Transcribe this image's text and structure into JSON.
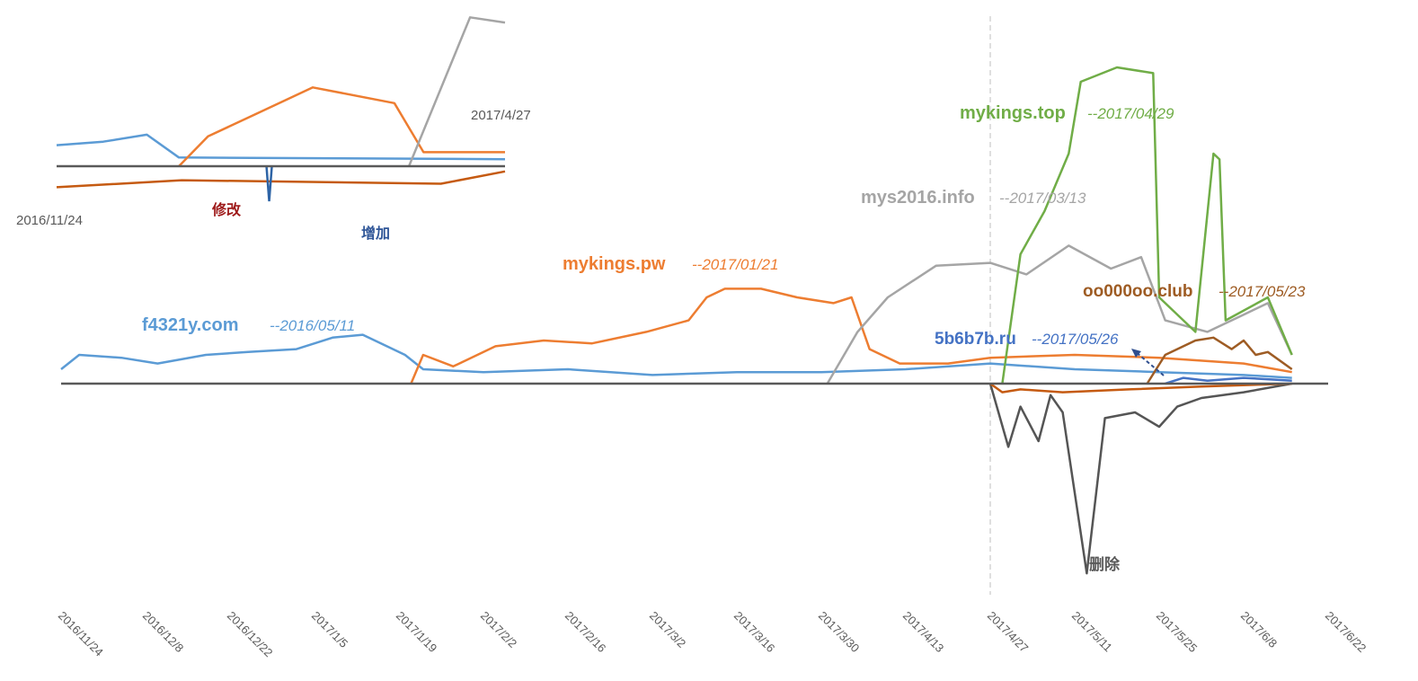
{
  "chart_data": [
    {
      "type": "line",
      "title": "",
      "xlabel": "",
      "ylabel": "",
      "x_ticks": [
        "2016/11/24",
        "2016/12/8",
        "2016/12/22",
        "2017/1/5",
        "2017/1/19",
        "2017/2/2",
        "2017/2/16",
        "2017/3/2",
        "2017/3/16",
        "2017/3/30",
        "2017/4/13",
        "2017/4/27",
        "2017/5/11",
        "2017/5/25",
        "2017/6/8",
        "2017/6/22"
      ],
      "x_range": [
        "2016/11/24",
        "2017/6/22"
      ],
      "y_range": [
        -75,
        115
      ],
      "grid": false,
      "legend": "none",
      "reference_line": {
        "date": "2017/4/27",
        "style": "dashed"
      },
      "series": [
        {
          "color": "#5b9bd5",
          "label_bind": "labels.0",
          "points": [
            [
              "2016/11/24",
              5
            ],
            [
              "2016/11/27",
              10
            ],
            [
              "2016/12/4",
              9
            ],
            [
              "2016/12/10",
              7
            ],
            [
              "2016/12/18",
              10
            ],
            [
              "2016/12/25",
              11
            ],
            [
              "2017/1/2",
              12
            ],
            [
              "2017/1/8",
              16
            ],
            [
              "2017/1/13",
              17
            ],
            [
              "2017/1/20",
              10
            ],
            [
              "2017/1/23",
              5
            ],
            [
              "2017/2/2",
              4
            ],
            [
              "2017/2/16",
              5
            ],
            [
              "2017/3/2",
              3
            ],
            [
              "2017/3/16",
              4
            ],
            [
              "2017/3/30",
              4
            ],
            [
              "2017/4/13",
              5
            ],
            [
              "2017/4/27",
              7
            ],
            [
              "2017/5/11",
              5
            ],
            [
              "2017/5/25",
              4
            ],
            [
              "2017/6/8",
              3
            ],
            [
              "2017/6/16",
              2
            ]
          ]
        },
        {
          "color": "#ed7d31",
          "label_bind": "labels.1",
          "points": [
            [
              "2017/1/21",
              0
            ],
            [
              "2017/1/23",
              10
            ],
            [
              "2017/1/28",
              6
            ],
            [
              "2017/2/4",
              13
            ],
            [
              "2017/2/12",
              15
            ],
            [
              "2017/2/20",
              14
            ],
            [
              "2017/3/1",
              18
            ],
            [
              "2017/3/8",
              22
            ],
            [
              "2017/3/11",
              30
            ],
            [
              "2017/3/14",
              33
            ],
            [
              "2017/3/20",
              33
            ],
            [
              "2017/3/26",
              30
            ],
            [
              "2017/4/1",
              28
            ],
            [
              "2017/4/4",
              30
            ],
            [
              "2017/4/7",
              12
            ],
            [
              "2017/4/12",
              7
            ],
            [
              "2017/4/20",
              7
            ],
            [
              "2017/4/27",
              9
            ],
            [
              "2017/5/11",
              10
            ],
            [
              "2017/5/25",
              9
            ],
            [
              "2017/6/8",
              7
            ],
            [
              "2017/6/16",
              4
            ]
          ]
        },
        {
          "color": "#a5a5a5",
          "label_bind": "labels.2",
          "points": [
            [
              "2017/3/31",
              0
            ],
            [
              "2017/4/5",
              18
            ],
            [
              "2017/4/10",
              30
            ],
            [
              "2017/4/18",
              41
            ],
            [
              "2017/4/27",
              42
            ],
            [
              "2017/5/3",
              38
            ],
            [
              "2017/5/10",
              48
            ],
            [
              "2017/5/17",
              40
            ],
            [
              "2017/5/22",
              44
            ],
            [
              "2017/5/26",
              22
            ],
            [
              "2017/6/2",
              18
            ],
            [
              "2017/6/8",
              24
            ],
            [
              "2017/6/12",
              28
            ],
            [
              "2017/6/16",
              10
            ]
          ]
        },
        {
          "color": "#70ad47",
          "label_bind": "labels.3",
          "points": [
            [
              "2017/4/29",
              0
            ],
            [
              "2017/5/2",
              45
            ],
            [
              "2017/5/6",
              60
            ],
            [
              "2017/5/10",
              80
            ],
            [
              "2017/5/12",
              105
            ],
            [
              "2017/5/18",
              110
            ],
            [
              "2017/5/24",
              108
            ],
            [
              "2017/5/25",
              30
            ],
            [
              "2017/5/31",
              18
            ],
            [
              "2017/6/3",
              80
            ],
            [
              "2017/6/4",
              78
            ],
            [
              "2017/6/5",
              22
            ],
            [
              "2017/6/12",
              30
            ],
            [
              "2017/6/16",
              10
            ]
          ]
        },
        {
          "color": "#9e5c24",
          "label_bind": "labels.4",
          "points": [
            [
              "2017/5/23",
              0
            ],
            [
              "2017/5/26",
              10
            ],
            [
              "2017/5/31",
              15
            ],
            [
              "2017/6/3",
              16
            ],
            [
              "2017/6/6",
              12
            ],
            [
              "2017/6/8",
              15
            ],
            [
              "2017/6/10",
              10
            ],
            [
              "2017/6/12",
              11
            ],
            [
              "2017/6/16",
              5
            ]
          ]
        },
        {
          "color": "#4472c4",
          "label_bind": "labels.5",
          "points": [
            [
              "2017/5/26",
              0
            ],
            [
              "2017/5/29",
              2
            ],
            [
              "2017/6/2",
              1
            ],
            [
              "2017/6/8",
              2
            ],
            [
              "2017/6/16",
              1
            ]
          ]
        },
        {
          "color": "#555555",
          "points": [
            [
              "2017/4/27",
              0
            ],
            [
              "2017/4/30",
              -22
            ],
            [
              "2017/5/2",
              -8
            ],
            [
              "2017/5/5",
              -20
            ],
            [
              "2017/5/7",
              -4
            ],
            [
              "2017/5/9",
              -10
            ],
            [
              "2017/5/13",
              -66
            ],
            [
              "2017/5/16",
              -12
            ],
            [
              "2017/5/21",
              -10
            ],
            [
              "2017/5/25",
              -15
            ],
            [
              "2017/5/28",
              -8
            ],
            [
              "2017/6/1",
              -5
            ],
            [
              "2017/6/8",
              -3
            ],
            [
              "2017/6/16",
              0
            ]
          ]
        },
        {
          "color": "#c55a11",
          "points": [
            [
              "2017/4/27",
              0
            ],
            [
              "2017/4/29",
              -3
            ],
            [
              "2017/5/2",
              -2
            ],
            [
              "2017/5/9",
              -3
            ],
            [
              "2017/5/20",
              -2
            ],
            [
              "2017/6/1",
              -1
            ],
            [
              "2017/6/16",
              0
            ]
          ]
        }
      ]
    },
    {
      "type": "line",
      "title": "",
      "x_range": [
        "2016/11/24",
        "2017/4/27"
      ],
      "x_ticks": [
        "2016/11/24",
        "2017/4/27"
      ],
      "grid": false,
      "legend": "none",
      "series": [
        {
          "color": "#5b9bd5",
          "points": [
            [
              "2016/11/24",
              12
            ],
            [
              "2016/12/10",
              14
            ],
            [
              "2016/12/25",
              18
            ],
            [
              "2017/1/5",
              5
            ],
            [
              "2017/4/27",
              4
            ]
          ]
        },
        {
          "color": "#ed7d31",
          "points": [
            [
              "2017/1/5",
              0
            ],
            [
              "2017/1/15",
              17
            ],
            [
              "2017/2/20",
              45
            ],
            [
              "2017/3/20",
              36
            ],
            [
              "2017/3/30",
              8
            ],
            [
              "2017/4/27",
              8
            ]
          ]
        },
        {
          "color": "#a5a5a5",
          "points": [
            [
              "2017/3/25",
              0
            ],
            [
              "2017/4/15",
              85
            ],
            [
              "2017/4/27",
              82
            ]
          ]
        },
        {
          "color": "#c55a11",
          "points": [
            [
              "2016/11/24",
              -12
            ],
            [
              "2017/1/6",
              -8
            ],
            [
              "2017/4/5",
              -10
            ],
            [
              "2017/4/27",
              -3
            ]
          ]
        },
        {
          "color": "#2e64a6",
          "points": [
            [
              "2017/2/5",
              -20
            ]
          ]
        }
      ]
    }
  ],
  "labels": [
    {
      "name": "f4321y.com",
      "date": "--2016/05/11",
      "name_color": "#5b9bd5",
      "date_color": "#5b9bd5"
    },
    {
      "name": "mykings.pw",
      "date": "--2017/01/21",
      "name_color": "#ed7d31",
      "date_color": "#ed7d31"
    },
    {
      "name": "mys2016.info",
      "date": "--2017/03/13",
      "name_color": "#a5a5a5",
      "date_color": "#a5a5a5"
    },
    {
      "name": "mykings.top",
      "date": "--2017/04/29",
      "name_color": "#70ad47",
      "date_color": "#70ad47"
    },
    {
      "name": "oo000oo.club",
      "date": "--2017/05/23",
      "name_color": "#9e5c24",
      "date_color": "#9e5c24"
    },
    {
      "name": "5b6b7b.ru",
      "date": "--2017/05/26",
      "name_color": "#4472c4",
      "date_color": "#4472c4"
    }
  ],
  "annotations": {
    "delete": "删除",
    "add": "增加",
    "modify": "修改",
    "inset_start": "2016/11/24",
    "inset_end": "2017/4/27"
  }
}
